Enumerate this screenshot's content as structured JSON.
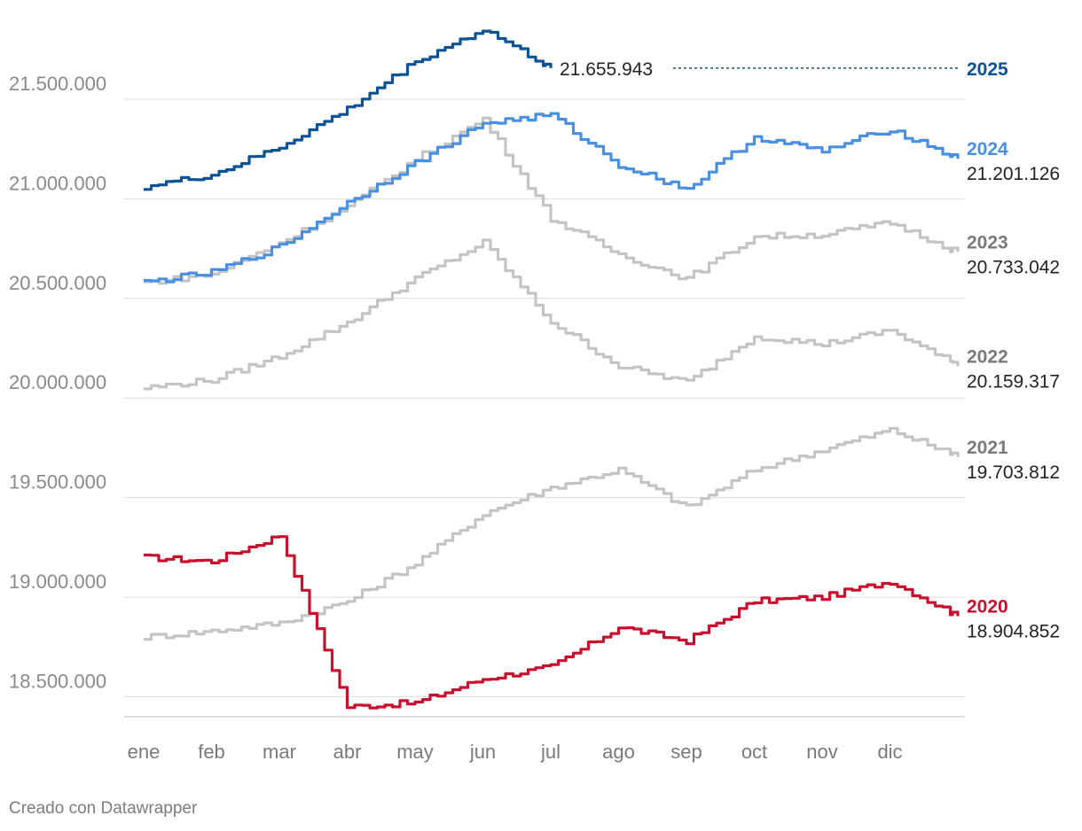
{
  "chart_data": {
    "type": "line",
    "title": "",
    "xlabel": "",
    "ylabel": "",
    "ylim": [
      18400000,
      21900000
    ],
    "y_ticks": [
      18500000,
      19000000,
      19500000,
      20000000,
      20500000,
      21000000,
      21500000
    ],
    "y_tick_labels": [
      "18.500.000",
      "19.000.000",
      "19.500.000",
      "20.000.000",
      "20.500.000",
      "21.000.000",
      "21.500.000"
    ],
    "x_ticks": [
      "ene",
      "feb",
      "mar",
      "abr",
      "may",
      "jun",
      "jul",
      "ago",
      "sep",
      "oct",
      "nov",
      "dic"
    ],
    "grid": true,
    "legend": "direct labels at line ends",
    "series": [
      {
        "name": "2020",
        "color": "#c8102e",
        "end_label": "18.904.852",
        "values": [
          19200000,
          19180000,
          19310000,
          18450000,
          18470000,
          18590000,
          18650000,
          18850000,
          18780000,
          18980000,
          19000000,
          19080000,
          18904852
        ]
      },
      {
        "name": "2021",
        "color": "#c4c4c4",
        "end_label": "19.703.812",
        "values": [
          18800000,
          18830000,
          18870000,
          18980000,
          19170000,
          19420000,
          19550000,
          19640000,
          19450000,
          19640000,
          19740000,
          19840000,
          19703812
        ]
      },
      {
        "name": "2022",
        "color": "#c4c4c4",
        "end_label": "20.159.317",
        "values": [
          20050000,
          20090000,
          20210000,
          20380000,
          20600000,
          20780000,
          20380000,
          20160000,
          20080000,
          20310000,
          20270000,
          20340000,
          20159317
        ]
      },
      {
        "name": "2023",
        "color": "#c4c4c4",
        "end_label": "20.733.042",
        "values": [
          20580000,
          20620000,
          20780000,
          20960000,
          21200000,
          21400000,
          20900000,
          20720000,
          20600000,
          20810000,
          20820000,
          20880000,
          20733042
        ]
      },
      {
        "name": "2024",
        "color": "#4a90e2",
        "end_label": "21.201.126",
        "values": [
          20580000,
          20630000,
          20760000,
          20980000,
          21180000,
          21380000,
          21420000,
          21170000,
          21050000,
          21310000,
          21240000,
          21350000,
          21201126
        ]
      },
      {
        "name": "2025",
        "color": "#0b5394",
        "end_label": "21.655.943",
        "values": [
          21060000,
          21120000,
          21260000,
          21450000,
          21690000,
          21850000,
          21655943
        ]
      }
    ]
  },
  "credit": "Creado con Datawrapper"
}
